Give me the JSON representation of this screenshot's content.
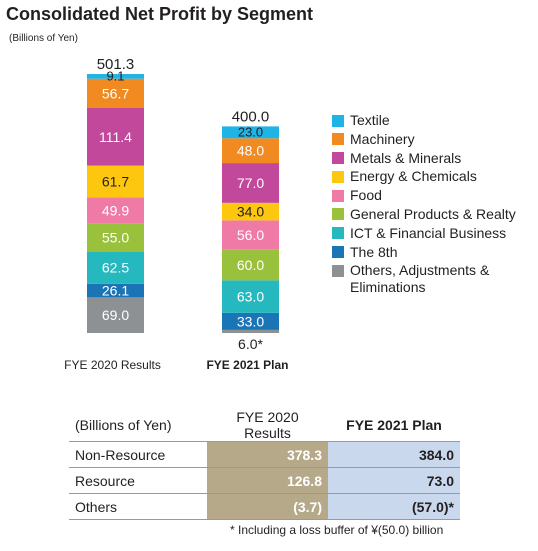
{
  "title": "Consolidated Net Profit by Segment",
  "unit": "(Billions of Yen)",
  "chart_data": {
    "type": "bar",
    "stacked": true,
    "categories": [
      "FYE 2020 Results",
      "FYE 2021 Plan"
    ],
    "totals": [
      "501.3",
      "400.0"
    ],
    "series": [
      {
        "name": "Textile",
        "color": "#1fb4e6",
        "values": [
          9.1,
          23.0
        ],
        "labels": [
          "9.1",
          "23.0"
        ]
      },
      {
        "name": "Machinery",
        "color": "#f08a21",
        "values": [
          56.7,
          48.0
        ],
        "labels": [
          "56.7",
          "48.0"
        ]
      },
      {
        "name": "Metals & Minerals",
        "color": "#c1489a",
        "values": [
          111.4,
          77.0
        ],
        "labels": [
          "111.4",
          "77.0"
        ]
      },
      {
        "name": "Energy & Chemicals",
        "color": "#fdc710",
        "values": [
          61.7,
          34.0
        ],
        "labels": [
          "61.7",
          "34.0"
        ]
      },
      {
        "name": "Food",
        "color": "#f07aa6",
        "values": [
          49.9,
          56.0
        ],
        "labels": [
          "49.9",
          "56.0"
        ]
      },
      {
        "name": "General Products & Realty",
        "color": "#9ac13c",
        "values": [
          55.0,
          60.0
        ],
        "labels": [
          "55.0",
          "60.0"
        ]
      },
      {
        "name": "ICT & Financial Business",
        "color": "#25b8bf",
        "values": [
          62.5,
          63.0
        ],
        "labels": [
          "62.5",
          "63.0"
        ]
      },
      {
        "name": "The 8th",
        "color": "#1a75b6",
        "values": [
          26.1,
          33.0
        ],
        "labels": [
          "26.1",
          "33.0"
        ]
      },
      {
        "name": "Others, Adjustments & Eliminations",
        "color": "#8d9194",
        "values": [
          69.0,
          6.0
        ],
        "labels": [
          "69.0",
          "6.0*"
        ]
      }
    ],
    "category_label_bold": [
      false,
      true
    ]
  },
  "legend": [
    {
      "name": "Textile",
      "color": "#1fb4e6"
    },
    {
      "name": "Machinery",
      "color": "#f08a21"
    },
    {
      "name": "Metals & Minerals",
      "color": "#c1489a"
    },
    {
      "name": "Energy & Chemicals",
      "color": "#fdc710"
    },
    {
      "name": "Food",
      "color": "#f07aa6"
    },
    {
      "name": "General Products & Realty",
      "color": "#9ac13c"
    },
    {
      "name": "ICT & Financial Business",
      "color": "#25b8bf"
    },
    {
      "name": "The 8th",
      "color": "#1a75b6"
    },
    {
      "name": "Others, Adjustments & Eliminations",
      "color": "#8d9194"
    }
  ],
  "table": {
    "unit": "(Billions of Yen)",
    "col1": "FYE 2020 Results",
    "col2": "FYE 2021 Plan",
    "rows": [
      {
        "label": "Non-Resource",
        "v1": "378.3",
        "v2": "384.0"
      },
      {
        "label": "Resource",
        "v1": "126.8",
        "v2": "73.0"
      },
      {
        "label": "Others",
        "v1": "(3.7)",
        "v2": "(57.0)*"
      }
    ]
  },
  "note": "* Including a loss buffer of ¥(50.0) billion"
}
